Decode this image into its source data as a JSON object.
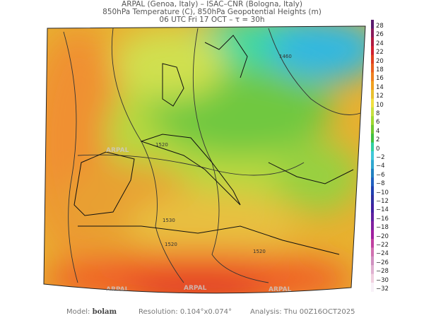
{
  "header": {
    "line1": "ARPAL (Genoa, Italy)  –  ISAC–CNR (Bologna, Italy)",
    "line2": "850hPa Temperature (C), 850hPa Geopotential Heights (m)",
    "line3": "06 UTC Fri 17 OCT  –  τ = 30h"
  },
  "colorbar": {
    "labels": [
      "28",
      "26",
      "24",
      "22",
      "20",
      "18",
      "16",
      "14",
      "12",
      "10",
      "8",
      "6",
      "4",
      "2",
      "0",
      "−2",
      "−4",
      "−6",
      "−8",
      "−10",
      "−12",
      "−14",
      "−16",
      "−18",
      "−20",
      "−22",
      "−24",
      "−26",
      "−28",
      "−30",
      "−32"
    ],
    "colors": [
      "#5a1a6e",
      "#8a1a5a",
      "#b01a40",
      "#d02030",
      "#e04020",
      "#e86020",
      "#ee8020",
      "#f0a020",
      "#e8c030",
      "#f0e040",
      "#c8e040",
      "#a0d830",
      "#70c830",
      "#40c040",
      "#30d0a0",
      "#40c8d8",
      "#30a8d0",
      "#2080c0",
      "#2060c0",
      "#2040b0",
      "#3030a0",
      "#4020a0",
      "#6020a0",
      "#8020a0",
      "#a020a0",
      "#c040a0",
      "#d070b0",
      "#d090c0",
      "#e0b0d0",
      "#f0d0e0",
      "#f8f0f8"
    ]
  },
  "map": {
    "contour_labels": [
      "1460",
      "1520",
      "1530",
      "1520",
      "1520"
    ],
    "watermark": "ARPAL"
  },
  "footer": {
    "model_label": "Model:",
    "model_value": "bolam",
    "resolution_label": "Resolution:",
    "resolution_value": "0.104°x0.074°",
    "analysis_label": "Analysis:",
    "analysis_value": "Thu  00Z16OCT2025"
  }
}
